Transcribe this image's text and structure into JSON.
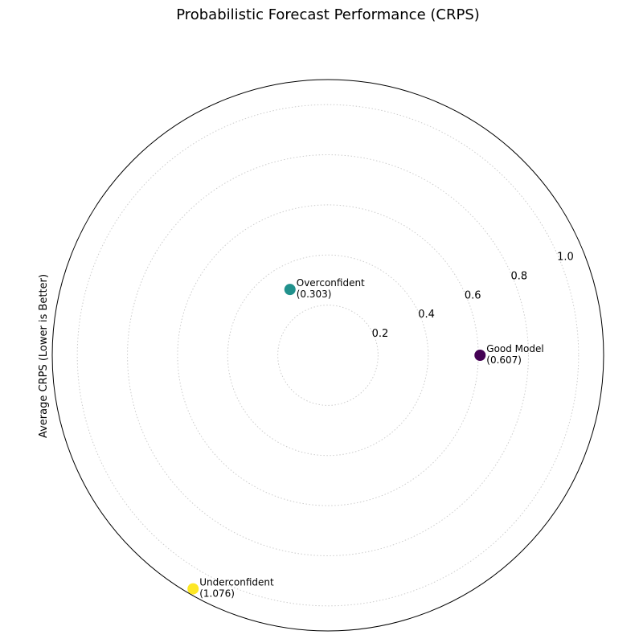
{
  "chart_data": {
    "type": "scatter",
    "projection": "polar",
    "title": "Probabilistic Forecast Performance (CRPS)",
    "ylabel": "Average CRPS (Lower is Better)",
    "rlim": [
      0,
      1.1
    ],
    "r_ticks": [
      0.2,
      0.4,
      0.6,
      0.8,
      1.0
    ],
    "r_tick_labels": [
      "0.2",
      "0.4",
      "0.6",
      "0.8",
      "1.0"
    ],
    "grid": true,
    "series": [
      {
        "label": "Good Model",
        "value_label": "(0.607)",
        "r": 0.607,
        "theta_deg": 0,
        "color": "#440154"
      },
      {
        "label": "Overconfident",
        "value_label": "(0.303)",
        "r": 0.303,
        "theta_deg": 120,
        "color": "#21918c"
      },
      {
        "label": "Underconfident",
        "value_label": "(1.076)",
        "r": 1.076,
        "theta_deg": 240,
        "color": "#fde725"
      }
    ]
  }
}
